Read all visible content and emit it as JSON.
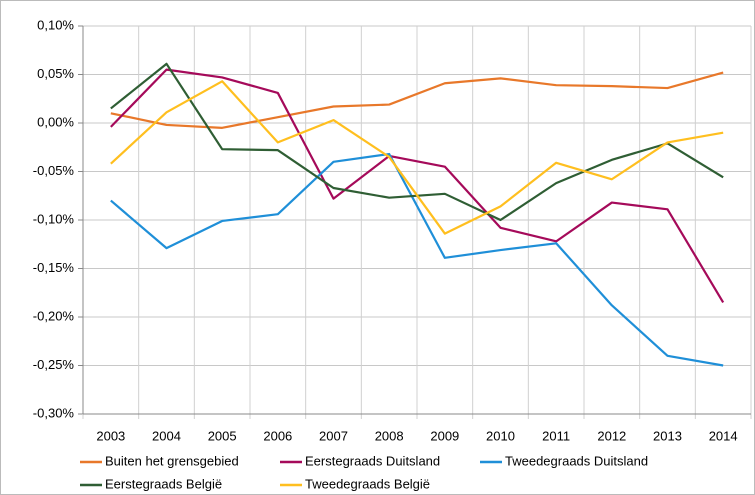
{
  "chart_data": {
    "type": "line",
    "categories": [
      "2003",
      "2004",
      "2005",
      "2006",
      "2007",
      "2008",
      "2009",
      "2010",
      "2011",
      "2012",
      "2013",
      "2014"
    ],
    "series": [
      {
        "name": "Buiten het grensgebied",
        "color": "#e8782a",
        "values": [
          0.01,
          -0.002,
          -0.005,
          0.006,
          0.017,
          0.019,
          0.041,
          0.046,
          0.039,
          0.038,
          0.036,
          0.052
        ]
      },
      {
        "name": "Eerstegraads Duitsland",
        "color": "#a50a5a",
        "values": [
          -0.004,
          0.055,
          0.047,
          0.031,
          -0.078,
          -0.034,
          -0.045,
          -0.108,
          -0.122,
          -0.082,
          -0.089,
          -0.185
        ]
      },
      {
        "name": "Tweedegraads Duitsland",
        "color": "#1f8fd8",
        "values": [
          -0.08,
          -0.129,
          -0.101,
          -0.094,
          -0.04,
          -0.032,
          -0.139,
          -0.131,
          -0.124,
          -0.188,
          -0.24,
          -0.25
        ]
      },
      {
        "name": "Eerstegraads België",
        "color": "#2f5e34",
        "values": [
          0.015,
          0.061,
          -0.027,
          -0.028,
          -0.067,
          -0.077,
          -0.073,
          -0.1,
          -0.062,
          -0.038,
          -0.021,
          -0.056
        ]
      },
      {
        "name": "Tweedegraads België",
        "color": "#ffbf1f",
        "values": [
          -0.042,
          0.011,
          0.043,
          -0.02,
          0.003,
          -0.035,
          -0.114,
          -0.086,
          -0.041,
          -0.058,
          -0.02,
          -0.01
        ]
      }
    ],
    "ylim": [
      -0.3,
      0.1
    ],
    "yticks": [
      {
        "value": 0.1,
        "label": "0,10%"
      },
      {
        "value": 0.05,
        "label": "0,05%"
      },
      {
        "value": 0,
        "label": "0,00%"
      },
      {
        "value": -0.05,
        "label": "-0,05%"
      },
      {
        "value": -0.1,
        "label": "-0,10%"
      },
      {
        "value": -0.15,
        "label": "-0,15%"
      },
      {
        "value": -0.2,
        "label": "-0,20%"
      },
      {
        "value": -0.25,
        "label": "-0,25%"
      },
      {
        "value": -0.3,
        "label": "-0,30%"
      }
    ],
    "grid": true
  }
}
